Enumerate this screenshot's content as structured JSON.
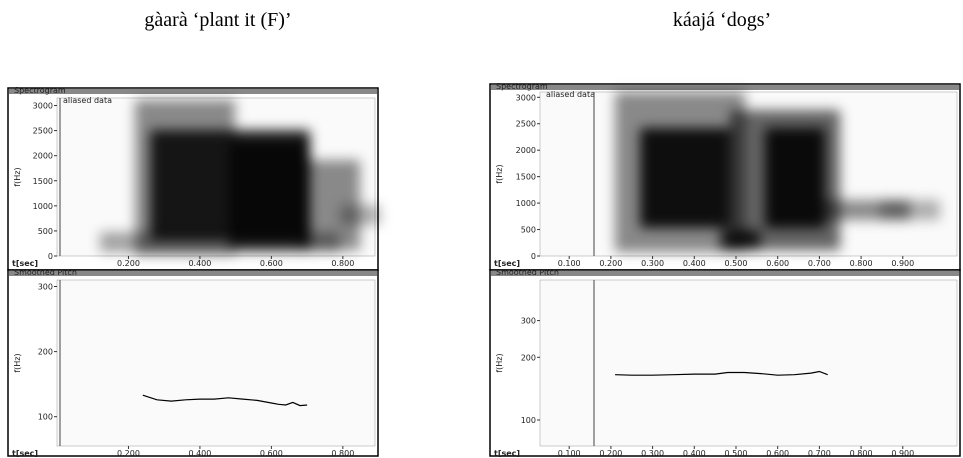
{
  "captions": [
    "gàarà ‘plant it (F)’",
    "káajá ‘dogs’"
  ],
  "chart_data": [
    {
      "type": "spectrogram",
      "title": "Spectrogram",
      "annotation": "aliased data",
      "xlabel": "t[sec]",
      "ylabel": "f(Hz)",
      "xlim": [
        0,
        0.89
      ],
      "ylim": [
        0,
        3150
      ],
      "xticks": [
        {
          "value": 0.2,
          "label": "0.200"
        },
        {
          "value": 0.4,
          "label": "0.400"
        },
        {
          "value": 0.6,
          "label": "0.600"
        },
        {
          "value": 0.8,
          "label": "0.800"
        }
      ],
      "yticks": [
        0,
        500,
        1000,
        1500,
        2000,
        2500,
        3000
      ]
    },
    {
      "type": "line",
      "title": "Smoothed Pitch",
      "xlabel": "t[sec]",
      "ylabel": "f(Hz)",
      "xlim": [
        0,
        0.89
      ],
      "ylim": [
        55,
        310
      ],
      "xticks": [
        {
          "value": 0.2,
          "label": "0.200"
        },
        {
          "value": 0.4,
          "label": "0.400"
        },
        {
          "value": 0.6,
          "label": "0.600"
        },
        {
          "value": 0.8,
          "label": "0.800"
        }
      ],
      "yticks": [
        100,
        200,
        300
      ],
      "x": [
        0.24,
        0.28,
        0.32,
        0.36,
        0.4,
        0.44,
        0.48,
        0.52,
        0.56,
        0.6,
        0.62,
        0.64,
        0.66,
        0.68,
        0.7
      ],
      "values": [
        133,
        126,
        124,
        126,
        127,
        127,
        129,
        127,
        125,
        121,
        119,
        118,
        122,
        117,
        118
      ]
    },
    {
      "type": "spectrogram",
      "title": "Spectrogram",
      "annotation": "aliased data",
      "xlabel": "t[sec]",
      "ylabel": "f(Hz)",
      "xlim": [
        0.03,
        1.03
      ],
      "ylim": [
        0,
        3100
      ],
      "xticks": [
        {
          "value": 0.1,
          "label": "0.100"
        },
        {
          "value": 0.2,
          "label": "0.200"
        },
        {
          "value": 0.3,
          "label": "0.300"
        },
        {
          "value": 0.4,
          "label": "0.400"
        },
        {
          "value": 0.5,
          "label": "0.500"
        },
        {
          "value": 0.6,
          "label": "0.600"
        },
        {
          "value": 0.7,
          "label": "0.700"
        },
        {
          "value": 0.8,
          "label": "0.800"
        },
        {
          "value": 0.9,
          "label": "0.900"
        }
      ],
      "yticks": [
        0,
        500,
        1000,
        1500,
        2000,
        2500,
        3000
      ]
    },
    {
      "type": "line",
      "title": "Smoothed Pitch",
      "xlabel": "t[sec]",
      "ylabel": "f(Hz)",
      "log": true,
      "xlim": [
        0.03,
        1.03
      ],
      "ylim": [
        75,
        470
      ],
      "xticks": [
        {
          "value": 0.1,
          "label": "0.100"
        },
        {
          "value": 0.2,
          "label": "0.200"
        },
        {
          "value": 0.3,
          "label": "0.300"
        },
        {
          "value": 0.4,
          "label": "0.400"
        },
        {
          "value": 0.5,
          "label": "0.500"
        },
        {
          "value": 0.6,
          "label": "0.600"
        },
        {
          "value": 0.7,
          "label": "0.700"
        },
        {
          "value": 0.8,
          "label": "0.800"
        },
        {
          "value": 0.9,
          "label": "0.900"
        }
      ],
      "yticks": [
        100,
        200,
        300
      ],
      "x": [
        0.21,
        0.25,
        0.3,
        0.35,
        0.4,
        0.45,
        0.48,
        0.52,
        0.56,
        0.6,
        0.64,
        0.68,
        0.7,
        0.72
      ],
      "values": [
        165,
        164,
        164,
        165,
        166,
        166,
        169,
        169,
        167,
        164,
        165,
        168,
        171,
        165
      ]
    }
  ]
}
